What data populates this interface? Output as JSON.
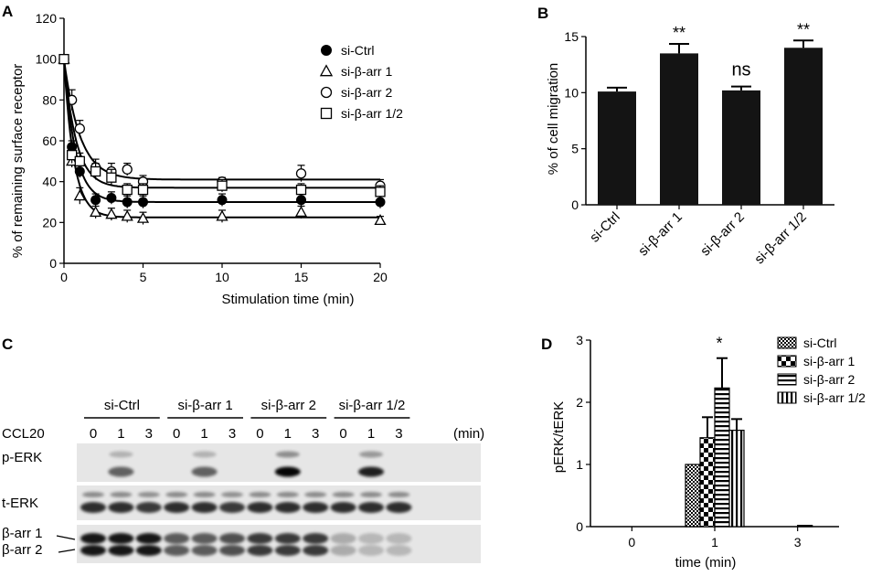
{
  "panel_labels": {
    "a": "A",
    "b": "B",
    "c": "C",
    "d": "D"
  },
  "chart_data": [
    {
      "panel": "A",
      "type": "scatter",
      "xlabel": "Stimulation time (min)",
      "ylabel": "% of remaining surface receptor",
      "xlim": [
        0,
        20
      ],
      "ylim": [
        0,
        120
      ],
      "xticks": [
        0,
        5,
        10,
        15,
        20
      ],
      "yticks": [
        0,
        20,
        40,
        60,
        80,
        100,
        120
      ],
      "legend_position": "top-right",
      "series": [
        {
          "name": "si-Ctrl",
          "marker": "filled-circle",
          "x": [
            0,
            0.5,
            1,
            2,
            3,
            4,
            5,
            10,
            15,
            20
          ],
          "y": [
            100,
            57,
            45,
            31,
            32,
            30,
            30,
            31,
            31,
            30
          ],
          "err": [
            0,
            3,
            3,
            3,
            3,
            3,
            3,
            3,
            3,
            3
          ],
          "plateau": 30,
          "k": 1.4
        },
        {
          "name": "si-β-arr 1",
          "marker": "triangle",
          "x": [
            0,
            0.5,
            1,
            2,
            3,
            4,
            5,
            10,
            15,
            20
          ],
          "y": [
            100,
            50,
            33,
            25,
            24,
            23,
            22,
            23,
            25,
            21
          ],
          "err": [
            0,
            3,
            4,
            3,
            3,
            3,
            3,
            3,
            3,
            2
          ],
          "plateau": 22.5,
          "k": 1.6
        },
        {
          "name": "si-β-arr 2",
          "marker": "open-circle",
          "x": [
            0,
            0.5,
            1,
            2,
            3,
            4,
            5,
            10,
            15,
            20
          ],
          "y": [
            100,
            80,
            66,
            47,
            45,
            46,
            40,
            40,
            44,
            38
          ],
          "err": [
            0,
            5,
            4,
            4,
            4,
            3,
            3,
            2,
            4,
            3
          ],
          "plateau": 41,
          "k": 1.0
        },
        {
          "name": "si-β-arr 1/2",
          "marker": "open-square",
          "x": [
            0,
            0.5,
            1,
            2,
            3,
            4,
            5,
            10,
            15,
            20
          ],
          "y": [
            100,
            53,
            50,
            45,
            42,
            36,
            36,
            38,
            36,
            35
          ],
          "err": [
            0,
            4,
            4,
            4,
            4,
            3,
            3,
            3,
            3,
            3
          ],
          "plateau": 37,
          "k": 1.3
        }
      ]
    },
    {
      "panel": "B",
      "type": "bar",
      "ylabel": "% of cell migration",
      "ylim": [
        0,
        15
      ],
      "yticks": [
        0,
        5,
        10,
        15
      ],
      "categories": [
        "si-Ctrl",
        "si-β-arr 1",
        "si-β-arr 2",
        "si-β-arr 1/2"
      ],
      "values": [
        10.1,
        13.5,
        10.2,
        14.0
      ],
      "errors": [
        0.35,
        0.85,
        0.35,
        0.65
      ],
      "annotations": [
        "",
        "**",
        "ns",
        "**"
      ]
    },
    {
      "panel": "D",
      "type": "bar",
      "xlabel": "time (min)",
      "ylabel": "pERK/tERK",
      "ylim": [
        0,
        3
      ],
      "yticks": [
        0,
        1,
        2,
        3
      ],
      "categories": [
        "0",
        "1",
        "3"
      ],
      "legend_position": "top-right",
      "series": [
        {
          "name": "si-Ctrl",
          "pattern": "checker",
          "values": [
            0,
            1.0,
            0
          ],
          "errors": [
            0,
            0,
            0
          ]
        },
        {
          "name": "si-β-arr 1",
          "pattern": "big-checker",
          "values": [
            0,
            1.43,
            0
          ],
          "errors": [
            0,
            0.33,
            0
          ]
        },
        {
          "name": "si-β-arr 2",
          "pattern": "hstripe",
          "values": [
            0,
            2.23,
            0.02
          ],
          "errors": [
            0,
            0.48,
            0
          ]
        },
        {
          "name": "si-β-arr 1/2",
          "pattern": "vstripe",
          "values": [
            0,
            1.55,
            0
          ],
          "errors": [
            0,
            0.18,
            0
          ]
        }
      ],
      "annotations": [
        {
          "category": "1",
          "text": "*"
        }
      ]
    }
  ],
  "blot": {
    "groups": [
      "si-Ctrl",
      "si-β-arr 1",
      "si-β-arr 2",
      "si-β-arr 1/2"
    ],
    "ccl20_label": "CCL20",
    "times": [
      "0",
      "1",
      "3"
    ],
    "unit_label": "(min)",
    "rows": [
      {
        "label": "p-ERK",
        "label2": "",
        "intensity": [
          0,
          0.5,
          0,
          0,
          0.5,
          0,
          0,
          0.85,
          0,
          0,
          0.75,
          0
        ]
      },
      {
        "label": "t-ERK",
        "label2": "",
        "intensity": [
          0.8,
          0.8,
          0.75,
          0.8,
          0.8,
          0.75,
          0.8,
          0.8,
          0.8,
          0.8,
          0.8,
          0.8
        ]
      },
      {
        "label": "β-arr 1",
        "label2": "β-arr 2",
        "intensity": [
          0.9,
          0.9,
          0.9,
          0.6,
          0.6,
          0.65,
          0.75,
          0.75,
          0.75,
          0.25,
          0.2,
          0.2
        ]
      }
    ]
  }
}
